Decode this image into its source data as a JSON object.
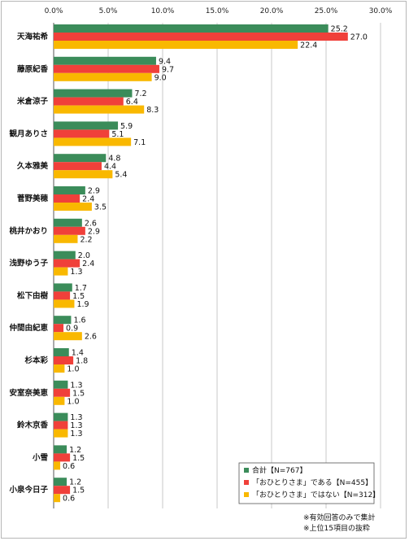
{
  "chart_data": {
    "type": "bar",
    "orientation": "horizontal",
    "xlim": [
      0,
      30
    ],
    "xticks": [
      "0.0%",
      "5.0%",
      "10.0%",
      "15.0%",
      "20.0%",
      "25.0%",
      "30.0%"
    ],
    "xtick_values": [
      0,
      5,
      10,
      15,
      20,
      25,
      30
    ],
    "grid": true,
    "legend_position": "bottom-right",
    "categories": [
      "天海祐希",
      "藤原紀香",
      "米倉涼子",
      "観月ありさ",
      "久本雅美",
      "菅野美穂",
      "桃井かおり",
      "浅野ゆう子",
      "松下由樹",
      "仲間由紀恵",
      "杉本彩",
      "安室奈美恵",
      "鈴木京香",
      "小雪",
      "小泉今日子"
    ],
    "series": [
      {
        "name": "合計【N=767】",
        "color": "#3b8c5a",
        "values": [
          25.2,
          9.4,
          7.2,
          5.9,
          4.8,
          2.9,
          2.6,
          2.0,
          1.7,
          1.6,
          1.4,
          1.3,
          1.3,
          1.2,
          1.2
        ]
      },
      {
        "name": "「おひとりさま」である【N=455】",
        "color": "#f0403a",
        "values": [
          27.0,
          9.7,
          6.4,
          5.1,
          4.4,
          2.4,
          2.9,
          2.4,
          1.5,
          0.9,
          1.8,
          1.5,
          1.3,
          1.5,
          1.5
        ]
      },
      {
        "name": "「おひとりさま」ではない【N=312】",
        "color": "#f9b800",
        "values": [
          22.4,
          9.0,
          8.3,
          7.1,
          5.4,
          3.5,
          2.2,
          1.3,
          1.9,
          2.6,
          1.0,
          1.0,
          1.3,
          0.6,
          0.6
        ]
      }
    ],
    "notes": [
      "※有効回答のみで集計",
      "※上位15項目の抜粋"
    ]
  }
}
